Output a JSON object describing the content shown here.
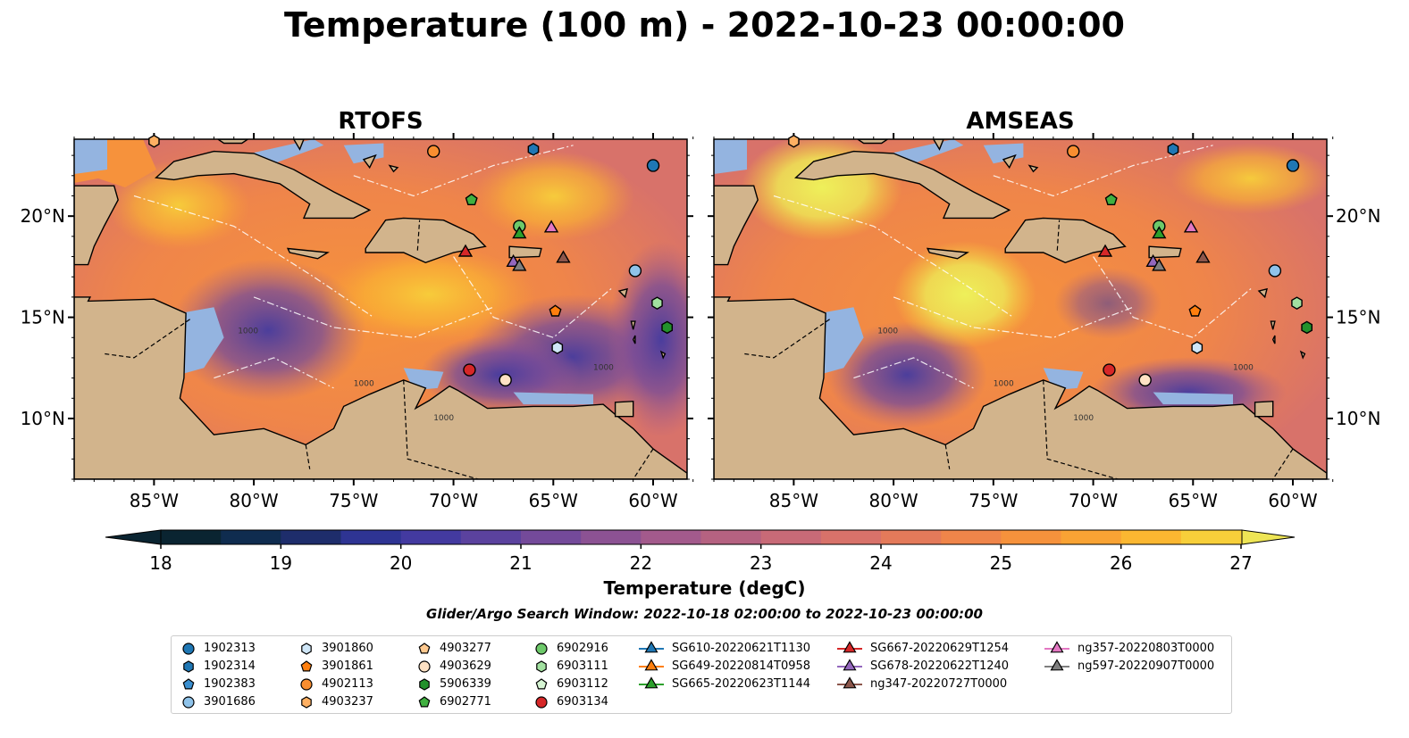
{
  "title": "Temperature (100 m) - 2022-10-23 00:00:00",
  "panels": [
    {
      "title": "RTOFS",
      "color_scheme": "rtofs"
    },
    {
      "title": "AMSEAS",
      "color_scheme": "amseas"
    }
  ],
  "lon_ticks": [
    "85°W",
    "80°W",
    "75°W",
    "70°W",
    "65°W",
    "60°W"
  ],
  "lat_ticks": [
    "20°N",
    "15°N",
    "10°N"
  ],
  "map_extent": {
    "lon": [
      -89,
      -58.3
    ],
    "lat": [
      7,
      23.8
    ]
  },
  "colorbar": {
    "label": "Temperature (degC)",
    "ticks": [
      "18",
      "19",
      "20",
      "21",
      "22",
      "23",
      "24",
      "25",
      "26",
      "27"
    ],
    "range": [
      18,
      27
    ],
    "colors": [
      "#0a2431",
      "#0f2c4f",
      "#1e2d6b",
      "#2e3493",
      "#433aa0",
      "#5b429e",
      "#744a9a",
      "#8c5293",
      "#a35a8c",
      "#b56281",
      "#c86a77",
      "#d8726a",
      "#e47a5a",
      "#ef854a",
      "#f6923c",
      "#f9a334",
      "#fbb731",
      "#f7cf3a",
      "#eee555"
    ]
  },
  "contour_labels": [
    "1000",
    "1000",
    "1000",
    "1000"
  ],
  "search_window": "Glider/Argo Search Window: 2022-10-18 02:00:00 to 2022-10-23 00:00:00",
  "colors": {
    "land": "#d2b48c",
    "shelf": "#94b4e0",
    "ocean_cool": "#5b429e",
    "ocean_warm": "#f6923c"
  },
  "legend": [
    {
      "label": "1902313",
      "marker": "circle",
      "color": "#1f77b4"
    },
    {
      "label": "1902314",
      "marker": "hexagon",
      "color": "#1f77b4"
    },
    {
      "label": "1902383",
      "marker": "pentagon",
      "color": "#3a8fd0"
    },
    {
      "label": "3901686",
      "marker": "circle",
      "color": "#8fc3ea"
    },
    {
      "label": "3901860",
      "marker": "hexagon",
      "color": "#cfe6f7"
    },
    {
      "label": "3901861",
      "marker": "pentagon",
      "color": "#ff7f0e"
    },
    {
      "label": "4902113",
      "marker": "circle",
      "color": "#f98e30"
    },
    {
      "label": "4903237",
      "marker": "hexagon",
      "color": "#ffb062"
    },
    {
      "label": "4903277",
      "marker": "pentagon",
      "color": "#ffc98f"
    },
    {
      "label": "4903629",
      "marker": "circle",
      "color": "#ffe2c4"
    },
    {
      "label": "5906339",
      "marker": "hexagon",
      "color": "#23912c"
    },
    {
      "label": "6902771",
      "marker": "pentagon",
      "color": "#40b040"
    },
    {
      "label": "6902916",
      "marker": "circle",
      "color": "#6dc96a"
    },
    {
      "label": "6903111",
      "marker": "hexagon",
      "color": "#a2e1a0"
    },
    {
      "label": "6903112",
      "marker": "pentagon",
      "color": "#d6f5d3"
    },
    {
      "label": "6903134",
      "marker": "circle",
      "color": "#d62728"
    },
    {
      "label": "SG610-20220621T1130",
      "marker": "triangle-line",
      "color": "#1f77b4"
    },
    {
      "label": "SG649-20220814T0958",
      "marker": "triangle-line",
      "color": "#ff7f0e"
    },
    {
      "label": "SG665-20220623T1144",
      "marker": "triangle-line",
      "color": "#2ca02c"
    },
    {
      "label": "SG667-20220629T1254",
      "marker": "triangle-line",
      "color": "#d62728"
    },
    {
      "label": "SG678-20220622T1240",
      "marker": "triangle-line",
      "color": "#9467bd"
    },
    {
      "label": "ng347-20220727T0000",
      "marker": "triangle-line",
      "color": "#8c564b"
    },
    {
      "label": "ng357-20220803T0000",
      "marker": "triangle-line",
      "color": "#e377c2"
    },
    {
      "label": "ng597-20220907T0000",
      "marker": "triangle-line",
      "color": "#7f7f7f"
    }
  ],
  "observations": [
    {
      "id": "1902313",
      "lon": -60.0,
      "lat": 22.5
    },
    {
      "id": "1902314",
      "lon": -66.0,
      "lat": 23.3
    },
    {
      "id": "3901686",
      "lon": -60.9,
      "lat": 17.3
    },
    {
      "id": "3901860",
      "lon": -64.8,
      "lat": 13.5
    },
    {
      "id": "3901861",
      "lon": -64.9,
      "lat": 15.3
    },
    {
      "id": "4902113",
      "lon": -71.0,
      "lat": 23.2
    },
    {
      "id": "4903237",
      "lon": -85.0,
      "lat": 23.7
    },
    {
      "id": "4903629",
      "lon": -67.4,
      "lat": 11.9
    },
    {
      "id": "5906339",
      "lon": -59.3,
      "lat": 14.5
    },
    {
      "id": "6902771",
      "lon": -69.1,
      "lat": 20.8
    },
    {
      "id": "6902916",
      "lon": -66.7,
      "lat": 19.5
    },
    {
      "id": "6903111",
      "lon": -59.8,
      "lat": 15.7
    },
    {
      "id": "6903134",
      "lon": -69.2,
      "lat": 12.4
    },
    {
      "id": "SG665-20220623T1144",
      "lon": -66.7,
      "lat": 19.1
    },
    {
      "id": "SG667-20220629T1254",
      "lon": -69.4,
      "lat": 18.2
    },
    {
      "id": "SG678-20220622T1240",
      "lon": -67.0,
      "lat": 17.7
    },
    {
      "id": "ng347-20220727T0000",
      "lon": -64.5,
      "lat": 17.9
    },
    {
      "id": "ng357-20220803T0000",
      "lon": -65.1,
      "lat": 19.4
    },
    {
      "id": "ng597-20220907T0000",
      "lon": -66.7,
      "lat": 17.5
    }
  ]
}
